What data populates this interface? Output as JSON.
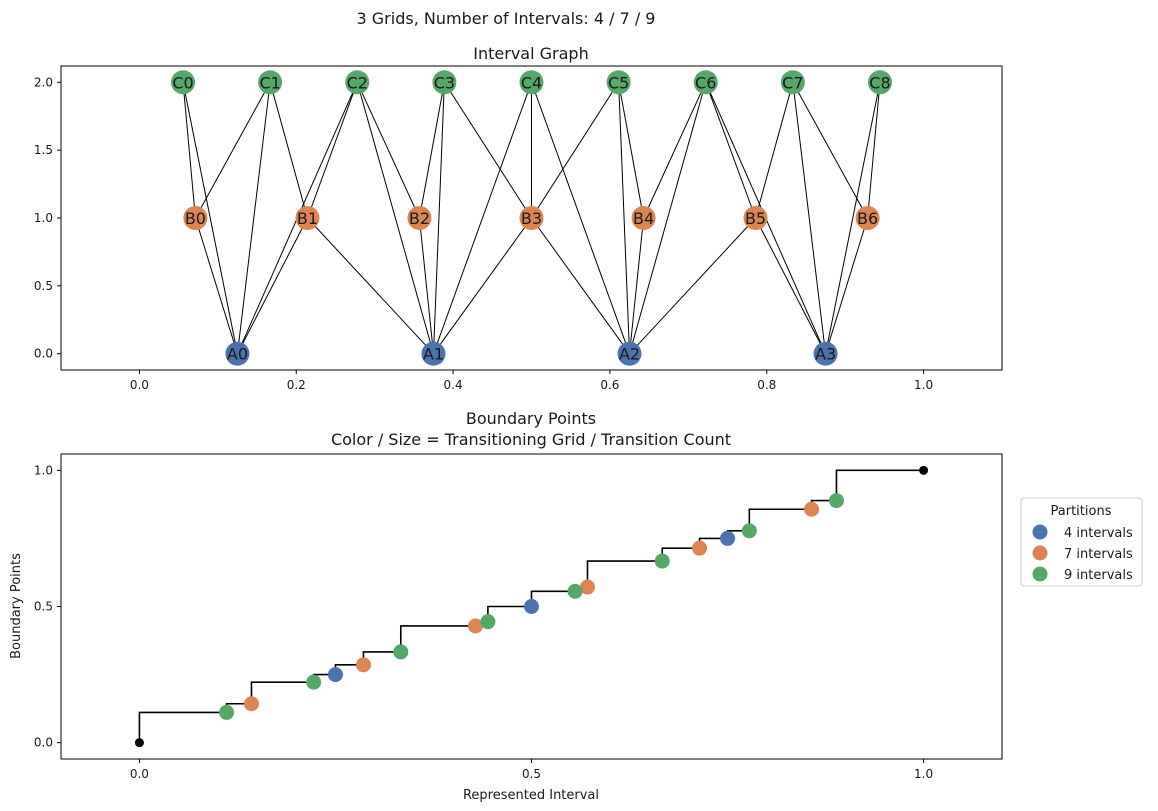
{
  "figure": {
    "suptitle": "3 Grids, Number of Intervals: 4 / 7 / 9"
  },
  "chart_data": [
    {
      "type": "graph",
      "title": "Interval Graph",
      "xlim": [
        -0.1,
        1.1
      ],
      "ylim": [
        -0.12,
        2.12
      ],
      "xticks": [
        "0.0",
        "0.2",
        "0.4",
        "0.6",
        "0.8",
        "1.0"
      ],
      "yticks": [
        "0.0",
        "0.5",
        "1.0",
        "1.5",
        "2.0"
      ],
      "colors": {
        "A": "#4c72b0",
        "B": "#dd8452",
        "C": "#55a868"
      },
      "nodes": [
        {
          "id": "A0",
          "x": 0.125,
          "y": 0,
          "grid": "A"
        },
        {
          "id": "A1",
          "x": 0.375,
          "y": 0,
          "grid": "A"
        },
        {
          "id": "A2",
          "x": 0.625,
          "y": 0,
          "grid": "A"
        },
        {
          "id": "A3",
          "x": 0.875,
          "y": 0,
          "grid": "A"
        },
        {
          "id": "B0",
          "x": 0.0714,
          "y": 1,
          "grid": "B"
        },
        {
          "id": "B1",
          "x": 0.2143,
          "y": 1,
          "grid": "B"
        },
        {
          "id": "B2",
          "x": 0.3571,
          "y": 1,
          "grid": "B"
        },
        {
          "id": "B3",
          "x": 0.5,
          "y": 1,
          "grid": "B"
        },
        {
          "id": "B4",
          "x": 0.6429,
          "y": 1,
          "grid": "B"
        },
        {
          "id": "B5",
          "x": 0.7857,
          "y": 1,
          "grid": "B"
        },
        {
          "id": "B6",
          "x": 0.9286,
          "y": 1,
          "grid": "B"
        },
        {
          "id": "C0",
          "x": 0.0556,
          "y": 2,
          "grid": "C"
        },
        {
          "id": "C1",
          "x": 0.1667,
          "y": 2,
          "grid": "C"
        },
        {
          "id": "C2",
          "x": 0.2778,
          "y": 2,
          "grid": "C"
        },
        {
          "id": "C3",
          "x": 0.3889,
          "y": 2,
          "grid": "C"
        },
        {
          "id": "C4",
          "x": 0.5,
          "y": 2,
          "grid": "C"
        },
        {
          "id": "C5",
          "x": 0.6111,
          "y": 2,
          "grid": "C"
        },
        {
          "id": "C6",
          "x": 0.7222,
          "y": 2,
          "grid": "C"
        },
        {
          "id": "C7",
          "x": 0.8333,
          "y": 2,
          "grid": "C"
        },
        {
          "id": "C8",
          "x": 0.9444,
          "y": 2,
          "grid": "C"
        }
      ],
      "edges": [
        [
          "C0",
          "B0"
        ],
        [
          "C0",
          "A0"
        ],
        [
          "C1",
          "B0"
        ],
        [
          "C1",
          "B1"
        ],
        [
          "C1",
          "A0"
        ],
        [
          "C2",
          "B1"
        ],
        [
          "C2",
          "B2"
        ],
        [
          "C2",
          "A0"
        ],
        [
          "C2",
          "A1"
        ],
        [
          "C3",
          "B2"
        ],
        [
          "C3",
          "B3"
        ],
        [
          "C3",
          "A1"
        ],
        [
          "C4",
          "B3"
        ],
        [
          "C4",
          "A1"
        ],
        [
          "C4",
          "A2"
        ],
        [
          "C5",
          "B3"
        ],
        [
          "C5",
          "B4"
        ],
        [
          "C5",
          "A2"
        ],
        [
          "C6",
          "B4"
        ],
        [
          "C6",
          "B5"
        ],
        [
          "C6",
          "A2"
        ],
        [
          "C6",
          "A3"
        ],
        [
          "C7",
          "B5"
        ],
        [
          "C7",
          "B6"
        ],
        [
          "C7",
          "A3"
        ],
        [
          "C8",
          "B6"
        ],
        [
          "C8",
          "A3"
        ],
        [
          "B0",
          "A0"
        ],
        [
          "B1",
          "A0"
        ],
        [
          "B1",
          "A1"
        ],
        [
          "B2",
          "A1"
        ],
        [
          "B3",
          "A1"
        ],
        [
          "B3",
          "A2"
        ],
        [
          "B4",
          "A2"
        ],
        [
          "B5",
          "A2"
        ],
        [
          "B5",
          "A3"
        ],
        [
          "B6",
          "A3"
        ]
      ]
    },
    {
      "type": "scatter",
      "title": "Boundary Points",
      "subtitle": "Color / Size = Transitioning Grid / Transition Count",
      "xlabel": "Represented Interval",
      "ylabel": "Boundary Points",
      "xlim": [
        -0.1,
        1.1
      ],
      "ylim": [
        -0.06,
        1.06
      ],
      "xticks": [
        "0.0",
        "0.5",
        "1.0"
      ],
      "yticks": [
        "0.0",
        "0.5",
        "1.0"
      ],
      "legend": {
        "title": "Partitions",
        "placement": "right",
        "entries": [
          {
            "label": "4 intervals",
            "color": "#4c72b0"
          },
          {
            "label": "7 intervals",
            "color": "#dd8452"
          },
          {
            "label": "9 intervals",
            "color": "#55a868"
          }
        ]
      },
      "step_x": [
        0,
        0,
        0.1111,
        0.1111,
        0.1429,
        0.1429,
        0.2222,
        0.2222,
        0.25,
        0.25,
        0.2857,
        0.2857,
        0.3333,
        0.3333,
        0.4286,
        0.4286,
        0.4444,
        0.4444,
        0.5,
        0.5,
        0.5556,
        0.5556,
        0.5714,
        0.5714,
        0.6667,
        0.6667,
        0.7143,
        0.7143,
        0.75,
        0.75,
        0.7778,
        0.7778,
        0.8571,
        0.8571,
        0.8889,
        0.8889,
        1.0
      ],
      "step_y": [
        0,
        0.1111,
        0.1111,
        0.1429,
        0.1429,
        0.2222,
        0.2222,
        0.25,
        0.25,
        0.2857,
        0.2857,
        0.3333,
        0.3333,
        0.4286,
        0.4286,
        0.4444,
        0.4444,
        0.5,
        0.5,
        0.5556,
        0.5556,
        0.5714,
        0.5714,
        0.6667,
        0.6667,
        0.7143,
        0.7143,
        0.75,
        0.75,
        0.7778,
        0.7778,
        0.8571,
        0.8571,
        0.8889,
        0.8889,
        1.0,
        1.0
      ],
      "endpoints": [
        {
          "x": 0,
          "y": 0
        },
        {
          "x": 1,
          "y": 1
        }
      ],
      "series": [
        {
          "name": "4 intervals",
          "color": "#4c72b0",
          "points": [
            [
              0.25,
              0.25
            ],
            [
              0.5,
              0.5
            ],
            [
              0.75,
              0.75
            ]
          ]
        },
        {
          "name": "7 intervals",
          "color": "#dd8452",
          "points": [
            [
              0.1429,
              0.1429
            ],
            [
              0.2857,
              0.2857
            ],
            [
              0.4286,
              0.4286
            ],
            [
              0.5714,
              0.5714
            ],
            [
              0.7143,
              0.7143
            ],
            [
              0.8571,
              0.8571
            ]
          ]
        },
        {
          "name": "9 intervals",
          "color": "#55a868",
          "points": [
            [
              0.1111,
              0.1111
            ],
            [
              0.2222,
              0.2222
            ],
            [
              0.3333,
              0.3333
            ],
            [
              0.4444,
              0.4444
            ],
            [
              0.5556,
              0.5556
            ],
            [
              0.6667,
              0.6667
            ],
            [
              0.7778,
              0.7778
            ],
            [
              0.8889,
              0.8889
            ]
          ]
        }
      ]
    }
  ]
}
